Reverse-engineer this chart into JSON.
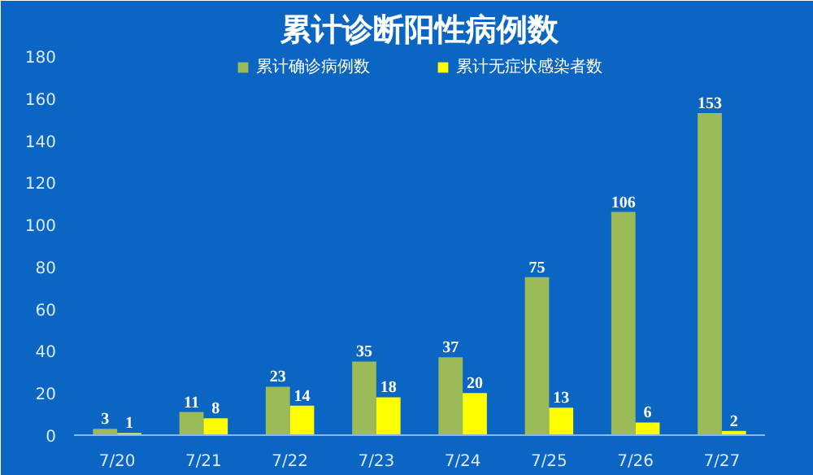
{
  "chart_data": {
    "type": "bar",
    "title": "累计诊断阳性病例数",
    "categories": [
      "7/20",
      "7/21",
      "7/22",
      "7/23",
      "7/24",
      "7/25",
      "7/26",
      "7/27"
    ],
    "series": [
      {
        "name": "累计确诊病例数",
        "color": "#9bbb59",
        "values": [
          3,
          11,
          23,
          35,
          37,
          75,
          106,
          153
        ]
      },
      {
        "name": "累计无症状感染者数",
        "color": "#ffff00",
        "values": [
          1,
          8,
          14,
          18,
          20,
          13,
          6,
          2
        ]
      }
    ],
    "ylim": [
      0,
      180
    ],
    "yticks": [
      0,
      20,
      40,
      60,
      80,
      100,
      120,
      140,
      160,
      180
    ],
    "data_labels": true,
    "legend": "top",
    "grid": false
  }
}
